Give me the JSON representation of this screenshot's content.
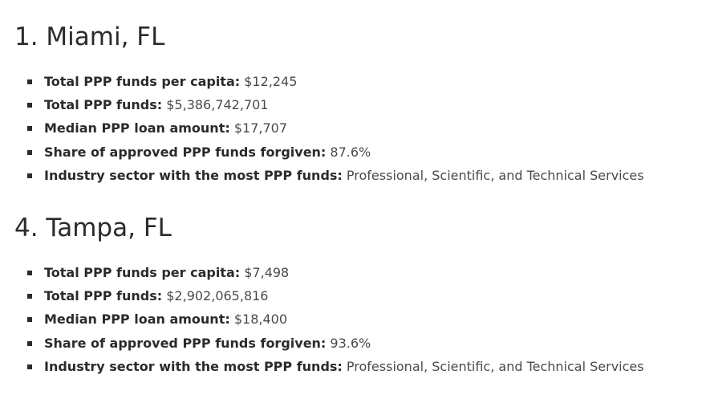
{
  "sections": [
    {
      "heading": "1. Miami, FL",
      "facts": [
        {
          "label": "Total PPP funds per capita:",
          "value": " $12,245"
        },
        {
          "label": "Total PPP funds:",
          "value": " $5,386,742,701"
        },
        {
          "label": "Median PPP loan amount:",
          "value": " $17,707"
        },
        {
          "label": "Share of approved PPP funds forgiven:",
          "value": " 87.6%"
        },
        {
          "label": "Industry sector with the most PPP funds:",
          "value": " Professional, Scientific, and Technical Services"
        }
      ]
    },
    {
      "heading": "4. Tampa, FL",
      "facts": [
        {
          "label": "Total PPP funds per capita:",
          "value": " $7,498"
        },
        {
          "label": "Total PPP funds:",
          "value": " $2,902,065,816"
        },
        {
          "label": "Median PPP loan amount:",
          "value": " $18,400"
        },
        {
          "label": "Share of approved PPP funds forgiven:",
          "value": " 93.6%"
        },
        {
          "label": "Industry sector with the most PPP funds:",
          "value": " Professional, Scientific, and Technical Services"
        }
      ]
    }
  ]
}
